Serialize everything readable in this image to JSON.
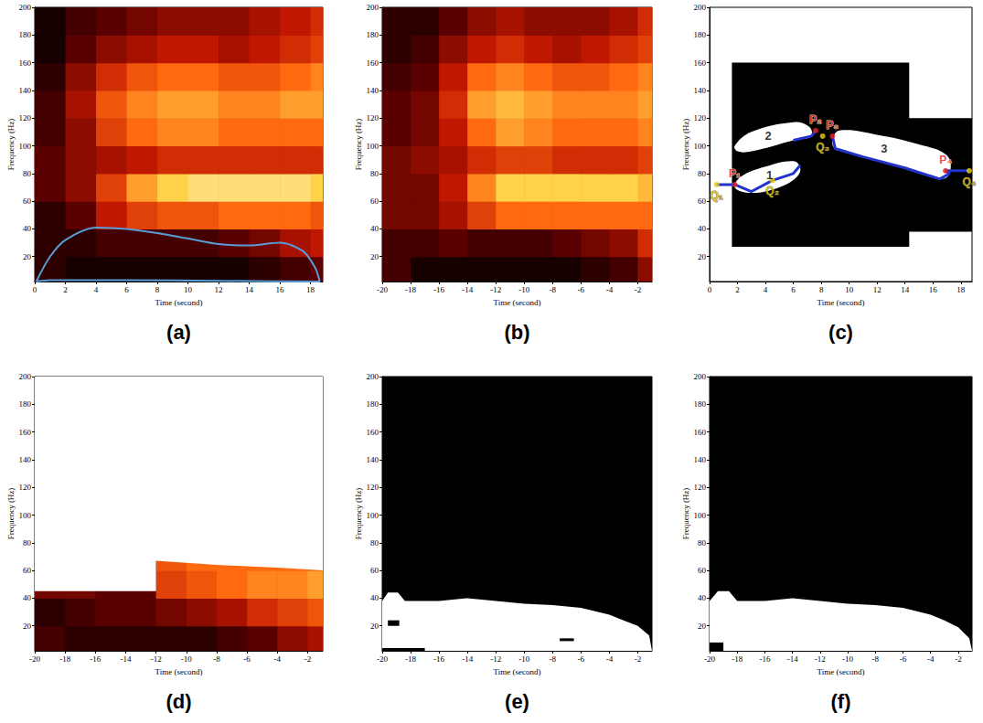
{
  "chart_data": [
    {
      "title": "(a)",
      "type": "heatmap",
      "xlabel": "Time (second)",
      "ylabel": "Frequency (Hz)",
      "xlim": [
        0,
        18.8
      ],
      "xticks": [
        0,
        2,
        4,
        6,
        8,
        10,
        12,
        14,
        16,
        18
      ],
      "ylim": [
        2,
        200
      ],
      "yticks": [
        20,
        40,
        60,
        80,
        100,
        120,
        140,
        160,
        180,
        200
      ],
      "cells": {
        "x_edges": [
          0,
          2,
          4,
          6,
          8,
          10,
          12,
          14,
          16,
          18,
          18.8
        ],
        "y_edges": [
          2,
          20,
          40,
          60,
          80,
          100,
          120,
          140,
          160,
          180,
          200
        ],
        "range": [
          0,
          1
        ],
        "colors": [
          "#000000",
          "#5a0000",
          "#c01800",
          "#ff6a10",
          "#ffd24a",
          "#ffffff"
        ],
        "values": [
          [
            0.1,
            0.05,
            0.05,
            0.05,
            0.05,
            0.05,
            0.05,
            0.1,
            0.15,
            0.2
          ],
          [
            0.1,
            0.1,
            0.15,
            0.15,
            0.15,
            0.15,
            0.2,
            0.25,
            0.35,
            0.4
          ],
          [
            0.1,
            0.2,
            0.4,
            0.5,
            0.55,
            0.55,
            0.6,
            0.6,
            0.6,
            0.55
          ],
          [
            0.2,
            0.3,
            0.5,
            0.7,
            0.8,
            0.85,
            0.85,
            0.85,
            0.85,
            0.8
          ],
          [
            0.2,
            0.3,
            0.35,
            0.4,
            0.45,
            0.45,
            0.45,
            0.45,
            0.45,
            0.45
          ],
          [
            0.15,
            0.3,
            0.5,
            0.6,
            0.65,
            0.65,
            0.6,
            0.6,
            0.6,
            0.6
          ],
          [
            0.15,
            0.35,
            0.55,
            0.65,
            0.7,
            0.7,
            0.65,
            0.65,
            0.7,
            0.7
          ],
          [
            0.1,
            0.3,
            0.45,
            0.55,
            0.6,
            0.6,
            0.55,
            0.55,
            0.6,
            0.65
          ],
          [
            0.05,
            0.2,
            0.3,
            0.35,
            0.4,
            0.4,
            0.35,
            0.4,
            0.45,
            0.5
          ],
          [
            0.05,
            0.15,
            0.2,
            0.25,
            0.3,
            0.3,
            0.3,
            0.35,
            0.4,
            0.45
          ]
        ]
      },
      "lines": [
        {
          "color": "#5b9bd5",
          "x": [
            0.1,
            1,
            2,
            4,
            6,
            8,
            10,
            12,
            14,
            16,
            17.5,
            18.3,
            18.6,
            18.4,
            12,
            6,
            1,
            0.1
          ],
          "y": [
            2,
            20,
            32,
            41,
            40,
            37,
            33,
            29,
            28,
            30,
            24,
            12,
            2,
            2,
            2.5,
            3,
            3,
            2
          ]
        }
      ]
    },
    {
      "title": "(b)",
      "type": "heatmap",
      "xlabel": "Time (second)",
      "ylabel": "Frequency (Hz)",
      "xlim": [
        -20,
        -1
      ],
      "xticks": [
        -20,
        -18,
        -16,
        -14,
        -12,
        -10,
        -8,
        -6,
        -4,
        -2
      ],
      "ylim": [
        2,
        200
      ],
      "yticks": [
        20,
        40,
        60,
        80,
        100,
        120,
        140,
        160,
        180,
        200
      ],
      "cells": {
        "x_edges": [
          -20,
          -18,
          -16,
          -14,
          -12,
          -10,
          -8,
          -6,
          -4,
          -2,
          -1
        ],
        "y_edges": [
          2,
          20,
          40,
          60,
          80,
          100,
          120,
          140,
          160,
          180,
          200
        ],
        "range": [
          0,
          1
        ],
        "colors": [
          "#000000",
          "#5a0000",
          "#c01800",
          "#ff6a10",
          "#ffd24a",
          "#ffffff"
        ],
        "values": [
          [
            0.15,
            0.05,
            0.05,
            0.05,
            0.05,
            0.05,
            0.05,
            0.1,
            0.15,
            0.3
          ],
          [
            0.15,
            0.15,
            0.2,
            0.15,
            0.15,
            0.15,
            0.2,
            0.25,
            0.3,
            0.45
          ],
          [
            0.25,
            0.25,
            0.35,
            0.5,
            0.6,
            0.6,
            0.6,
            0.6,
            0.6,
            0.6
          ],
          [
            0.25,
            0.25,
            0.4,
            0.65,
            0.8,
            0.8,
            0.8,
            0.8,
            0.8,
            0.75
          ],
          [
            0.25,
            0.3,
            0.35,
            0.45,
            0.5,
            0.5,
            0.45,
            0.45,
            0.45,
            0.5
          ],
          [
            0.2,
            0.25,
            0.4,
            0.6,
            0.7,
            0.65,
            0.6,
            0.6,
            0.6,
            0.65
          ],
          [
            0.2,
            0.25,
            0.45,
            0.7,
            0.75,
            0.7,
            0.65,
            0.65,
            0.65,
            0.7
          ],
          [
            0.15,
            0.2,
            0.4,
            0.6,
            0.65,
            0.6,
            0.55,
            0.55,
            0.6,
            0.65
          ],
          [
            0.1,
            0.15,
            0.3,
            0.4,
            0.45,
            0.4,
            0.35,
            0.4,
            0.45,
            0.5
          ],
          [
            0.1,
            0.1,
            0.2,
            0.3,
            0.35,
            0.3,
            0.3,
            0.3,
            0.35,
            0.45
          ]
        ]
      }
    },
    {
      "title": "(c)",
      "type": "segmentation",
      "xlabel": "Time (second)",
      "ylabel": "Frequency (Hz)",
      "xlim": [
        0,
        18.8
      ],
      "xticks": [
        0,
        2,
        4,
        6,
        8,
        10,
        12,
        14,
        16,
        18
      ],
      "ylim": [
        2,
        200
      ],
      "yticks": [
        20,
        40,
        60,
        80,
        100,
        120,
        140,
        160,
        180,
        200
      ],
      "background_region": {
        "color": "#000000",
        "points": [
          [
            1.6,
            27
          ],
          [
            1.6,
            160
          ],
          [
            14.3,
            160
          ],
          [
            14.3,
            120
          ],
          [
            18.8,
            120
          ],
          [
            18.8,
            38
          ],
          [
            14.3,
            38
          ],
          [
            14.3,
            27
          ]
        ]
      },
      "regions": [
        {
          "color": "#ffffff",
          "points": [
            [
              1.8,
              70
            ],
            [
              3,
              66
            ],
            [
              5,
              70
            ],
            [
              6.2,
              77
            ],
            [
              6.5,
              84
            ],
            [
              6,
              89
            ],
            [
              4,
              85
            ],
            [
              2.3,
              78
            ]
          ]
        },
        {
          "color": "#ffffff",
          "points": [
            [
              1.8,
              100
            ],
            [
              3,
              110
            ],
            [
              6,
              117
            ],
            [
              7.1,
              114
            ],
            [
              7.3,
              107
            ],
            [
              6,
              104
            ],
            [
              3,
              96
            ],
            [
              2,
              96
            ]
          ]
        },
        {
          "color": "#ffffff",
          "points": [
            [
              8.8,
              104
            ],
            [
              9.3,
              111
            ],
            [
              12,
              108
            ],
            [
              15,
              101
            ],
            [
              17,
              93
            ],
            [
              17.2,
              80
            ],
            [
              16.5,
              76
            ],
            [
              14,
              84
            ],
            [
              11,
              92
            ],
            [
              9,
              98
            ]
          ]
        }
      ],
      "lines": [
        {
          "color": "#2233cc",
          "x": [
            0.5,
            1.8,
            3,
            4.5,
            6,
            6.5
          ],
          "y": [
            72,
            72,
            67,
            75,
            80,
            86
          ]
        },
        {
          "color": "#2233cc",
          "x": [
            6,
            7.3,
            7.6
          ],
          "y": [
            104,
            107,
            111
          ]
        },
        {
          "color": "#2233cc",
          "x": [
            8.8,
            9,
            11,
            14,
            16.5,
            17.2,
            16.9,
            18.6
          ],
          "y": [
            107,
            98,
            92,
            84,
            76,
            80,
            82,
            82
          ]
        }
      ],
      "points": [
        {
          "text": "P₁",
          "x": 1.8,
          "y": 72,
          "color": "#e02020"
        },
        {
          "text": "Q₁",
          "x": 0.5,
          "y": 72,
          "color": "#f0d000"
        },
        {
          "text": "Q₂",
          "x": 4.5,
          "y": 75,
          "color": "#f0d000"
        },
        {
          "text": "P₂",
          "x": 7.6,
          "y": 111,
          "color": "#e02020"
        },
        {
          "text": "Q₃",
          "x": 8.1,
          "y": 107,
          "color": "#f0d000"
        },
        {
          "text": "P₃",
          "x": 8.8,
          "y": 107,
          "color": "#e02020"
        },
        {
          "text": "P₄",
          "x": 16.9,
          "y": 82,
          "color": "#e02020"
        },
        {
          "text": "Q₄",
          "x": 18.6,
          "y": 82,
          "color": "#f0d000"
        }
      ],
      "annotations": [
        {
          "text": "1",
          "x": 4.3,
          "y": 79
        },
        {
          "text": "2",
          "x": 4.2,
          "y": 107
        },
        {
          "text": "3",
          "x": 12.5,
          "y": 98
        }
      ]
    },
    {
      "title": "(d)",
      "type": "heatmap",
      "xlabel": "Time (second)",
      "ylabel": "Frequency (Hz)",
      "xlim": [
        -20,
        -1
      ],
      "xticks": [
        -20,
        -18,
        -16,
        -14,
        -12,
        -10,
        -8,
        -6,
        -4,
        -2
      ],
      "ylim": [
        2,
        200
      ],
      "yticks": [
        20,
        40,
        60,
        80,
        100,
        120,
        140,
        160,
        180,
        200
      ],
      "cells": {
        "x_edges": [
          -20,
          -18,
          -16,
          -14,
          -12,
          -10,
          -8,
          -6,
          -4,
          -2,
          -1
        ],
        "y_edges": [
          2,
          20,
          40,
          60,
          80
        ],
        "range": [
          0,
          1
        ],
        "colors": [
          "#000000",
          "#5a0000",
          "#c01800",
          "#ff6a10",
          "#ffd24a",
          "#ffffff"
        ],
        "values": [
          [
            0.15,
            0.1,
            0.1,
            0.1,
            0.1,
            0.1,
            0.15,
            0.2,
            0.3,
            0.35
          ],
          [
            0.1,
            0.15,
            0.2,
            0.2,
            0.25,
            0.3,
            0.35,
            0.45,
            0.5,
            0.55
          ],
          [
            0.25,
            0.25,
            0.2,
            0.2,
            0.5,
            0.55,
            0.6,
            0.65,
            0.65,
            0.7
          ],
          [
            0.0,
            0.0,
            0.0,
            0.0,
            0.55,
            0.6,
            0.6,
            0.6,
            0.6,
            0.6
          ]
        ]
      },
      "mask": {
        "color": "#ffffff",
        "points": [
          [
            -20,
            200
          ],
          [
            -20,
            45
          ],
          [
            -12,
            45
          ],
          [
            -12,
            67
          ],
          [
            -8,
            64
          ],
          [
            -4,
            62
          ],
          [
            -1,
            60
          ],
          [
            -1,
            200
          ]
        ]
      }
    },
    {
      "title": "(e)",
      "type": "mask",
      "xlabel": "Time (second)",
      "ylabel": "Frequency (Hz)",
      "xlim": [
        -20,
        -1
      ],
      "xticks": [
        -20,
        -18,
        -16,
        -14,
        -12,
        -10,
        -8,
        -6,
        -4,
        -2
      ],
      "ylim": [
        2,
        200
      ],
      "yticks": [
        20,
        40,
        60,
        80,
        100,
        120,
        140,
        160,
        180,
        200
      ],
      "regions": [
        {
          "color": "#ffffff",
          "points": [
            [
              -20,
              2
            ],
            [
              -20,
              38
            ],
            [
              -19.6,
              44
            ],
            [
              -18.9,
              44
            ],
            [
              -18.4,
              38
            ],
            [
              -16,
              38
            ],
            [
              -14,
              40
            ],
            [
              -12,
              38
            ],
            [
              -10,
              36
            ],
            [
              -8,
              35
            ],
            [
              -6,
              33
            ],
            [
              -4,
              28
            ],
            [
              -3,
              24
            ],
            [
              -2,
              20
            ],
            [
              -1.2,
              13
            ],
            [
              -1,
              2
            ]
          ]
        }
      ],
      "holes": [
        {
          "color": "#000000",
          "points": [
            [
              -19.6,
              20
            ],
            [
              -18.8,
              20
            ],
            [
              -18.8,
              24
            ],
            [
              -19.6,
              24
            ]
          ]
        },
        {
          "color": "#000000",
          "points": [
            [
              -20,
              2
            ],
            [
              -17,
              2
            ],
            [
              -17,
              4
            ],
            [
              -20,
              4
            ]
          ]
        },
        {
          "color": "#000000",
          "points": [
            [
              -7.5,
              9
            ],
            [
              -6.5,
              9
            ],
            [
              -6.5,
              11
            ],
            [
              -7.5,
              11
            ]
          ]
        }
      ]
    },
    {
      "title": "(f)",
      "type": "mask",
      "xlabel": "Time (second)",
      "ylabel": "Frequency (Hz)",
      "xlim": [
        -20,
        -1
      ],
      "xticks": [
        -20,
        -18,
        -16,
        -14,
        -12,
        -10,
        -8,
        -6,
        -4,
        -2
      ],
      "ylim": [
        2,
        200
      ],
      "yticks": [
        20,
        40,
        60,
        80,
        100,
        120,
        140,
        160,
        180,
        200
      ],
      "regions": [
        {
          "color": "#ffffff",
          "points": [
            [
              -20,
              2
            ],
            [
              -20,
              38
            ],
            [
              -19.4,
              45
            ],
            [
              -18.6,
              45
            ],
            [
              -18,
              38
            ],
            [
              -16,
              38
            ],
            [
              -14,
              40
            ],
            [
              -12,
              38
            ],
            [
              -10,
              36
            ],
            [
              -8,
              35
            ],
            [
              -6,
              33
            ],
            [
              -4,
              28
            ],
            [
              -3,
              24
            ],
            [
              -2,
              19
            ],
            [
              -1.2,
              11
            ],
            [
              -1,
              2
            ]
          ]
        }
      ],
      "holes": [
        {
          "color": "#000000",
          "points": [
            [
              -20,
              2
            ],
            [
              -19,
              2
            ],
            [
              -19,
              8
            ],
            [
              -20,
              8
            ]
          ]
        }
      ]
    }
  ]
}
